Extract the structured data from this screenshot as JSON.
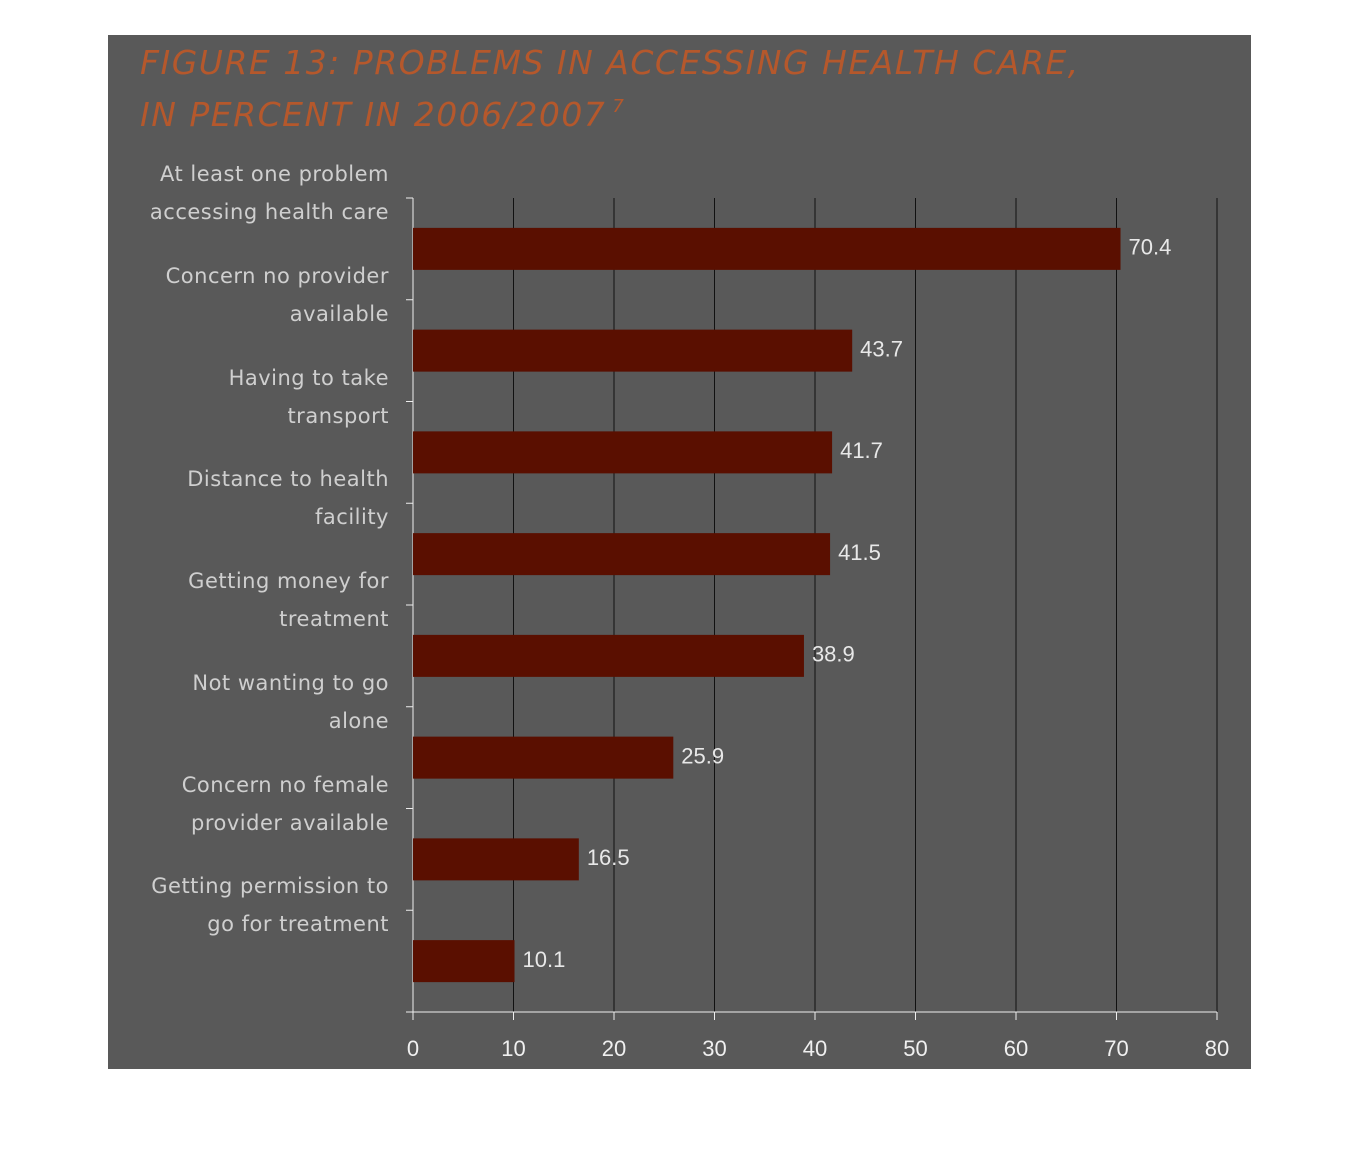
{
  "chart_data": {
    "type": "bar",
    "orientation": "horizontal",
    "title": [
      "FIGURE 13:  PROBLEMS IN ACCESSING HEALTH CARE,",
      "IN PERCENT  IN 2006/2007"
    ],
    "title_note": "7",
    "categories": [
      "At least one problem accessing health care",
      "Concern no provider available",
      "Having to take transport",
      "Distance to health facility",
      "Getting money for treatment",
      "Not wanting to go alone",
      "Concern no female provider available",
      "Getting permission to go for treatment"
    ],
    "values": [
      70.4,
      43.7,
      41.7,
      41.5,
      38.9,
      25.9,
      16.5,
      10.1
    ],
    "color": "#5a0f00",
    "xlim": [
      0,
      80
    ],
    "xticks": [
      0,
      10,
      20,
      30,
      40,
      50,
      60,
      70,
      80
    ],
    "grid": true
  }
}
